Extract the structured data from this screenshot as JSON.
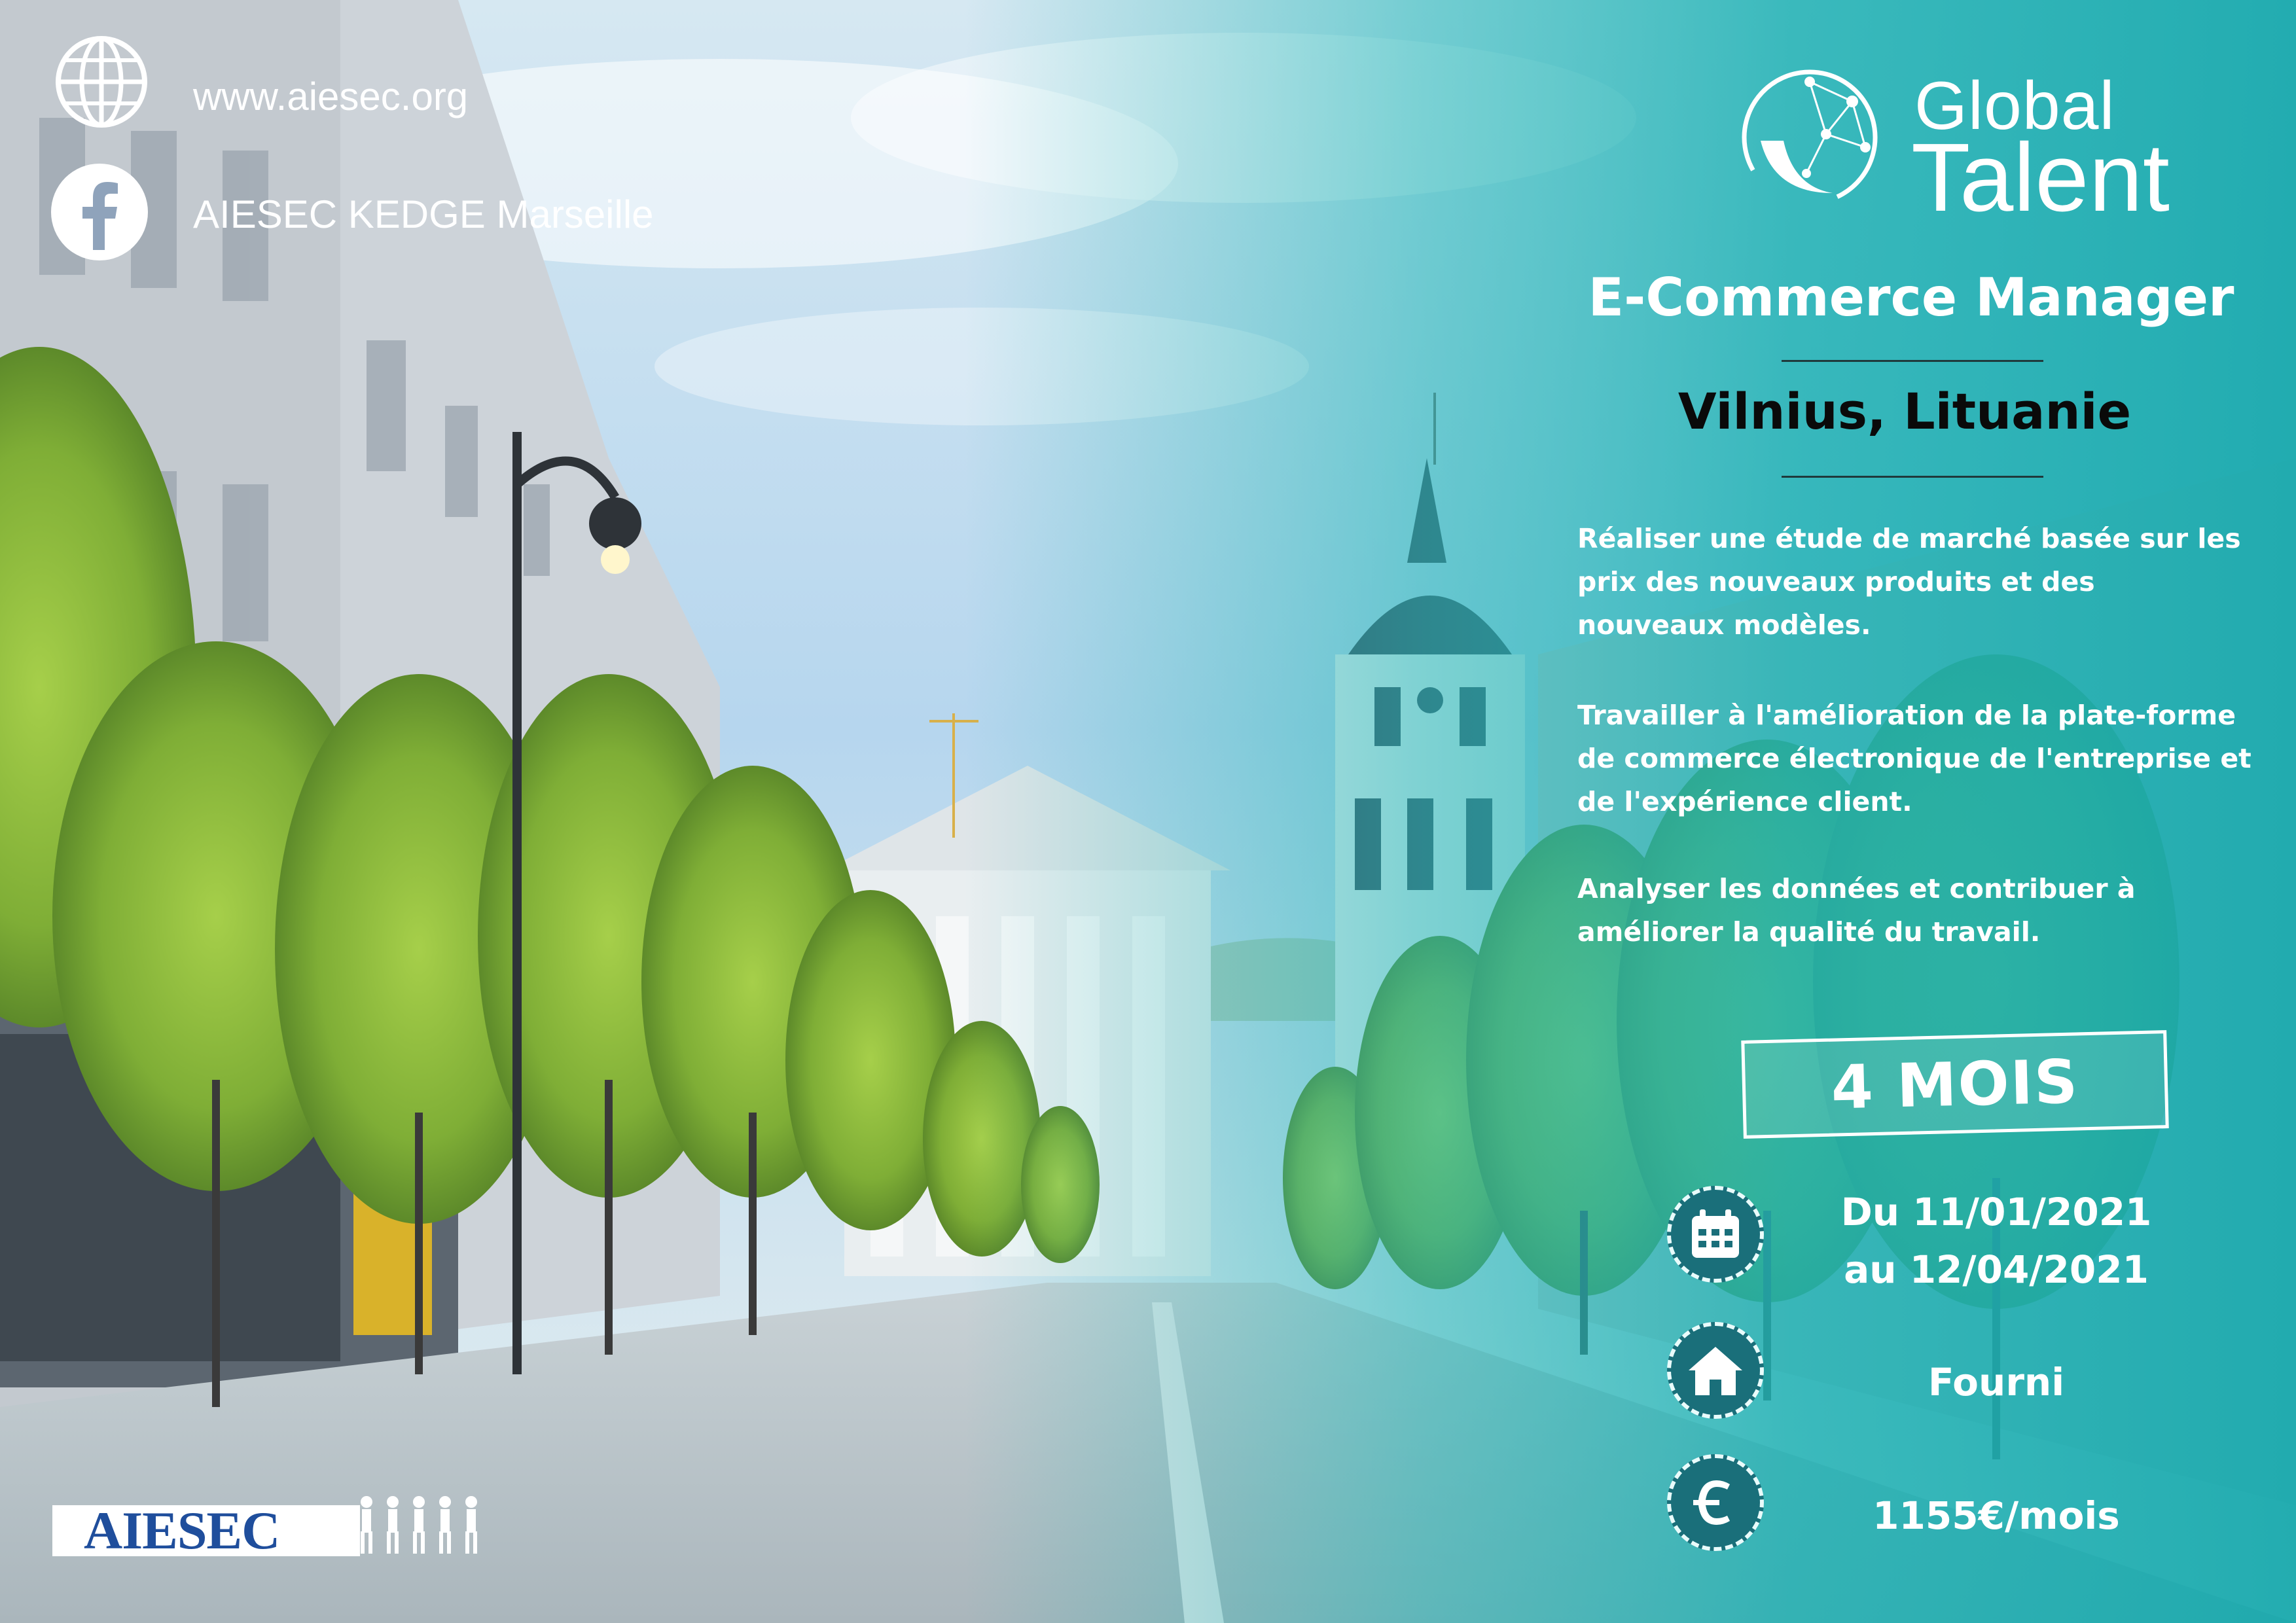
{
  "contact": {
    "website": "www.aiesec.org",
    "facebook": "AIESEC KEDGE Marseille",
    "website_icon": "globe-icon",
    "facebook_icon": "facebook-icon"
  },
  "brand": {
    "line1": "Global",
    "line2": "Talent",
    "icon": "global-talent-logo"
  },
  "job": {
    "title": "E-Commerce Manager",
    "location": "Vilnius, Lituanie",
    "descriptions": [
      [
        "Réaliser une étude de marché basée sur les",
        "prix des nouveaux produits et des",
        "nouveaux modèles."
      ],
      [
        "Travailler à l'amélioration de la plate-forme",
        "de commerce électronique de l'entreprise et",
        "de l'expérience client."
      ],
      [
        "Analyser les données et contribuer à",
        "améliorer la qualité du travail."
      ]
    ]
  },
  "duration": "4 MOIS",
  "details": {
    "dates_line1": "Du 11/01/2021",
    "dates_line2": "au 12/04/2021",
    "housing": "Fourni",
    "salary": "1155€/mois",
    "dates_icon": "calendar-icon",
    "housing_icon": "house-icon",
    "salary_icon": "euro-icon"
  },
  "footer": {
    "logo": "AIESEC"
  },
  "colors": {
    "teal_overlay": "#20b3b3",
    "accent_dark": "#1a6f7a",
    "aiesec_blue": "#1f4e9c"
  }
}
